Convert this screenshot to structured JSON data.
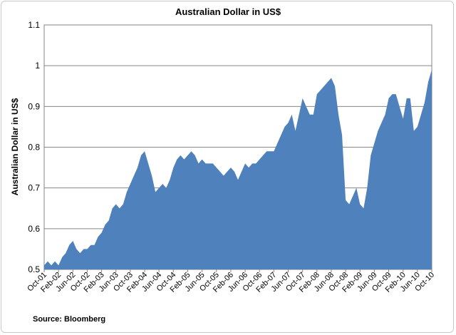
{
  "chart_data": {
    "type": "area",
    "title": "Australian Dollar in US$",
    "xlabel": "",
    "ylabel": "Australian Dollar in US$",
    "source": "Source: Bloomberg",
    "ylim": [
      0.5,
      1.1
    ],
    "y_ticks": [
      "0.5",
      "0.6",
      "0.7",
      "0.8",
      "0.9",
      "1",
      "1.1"
    ],
    "x_tick_labels": [
      "Oct-01",
      "Feb-02",
      "Jun-02",
      "Oct-02",
      "Feb-03",
      "Jun-03",
      "Oct-03",
      "Feb-04",
      "Jun-04",
      "Oct-04",
      "Feb-05",
      "Jun-05",
      "Oct-05",
      "Feb-06",
      "Jun-06",
      "Oct-06",
      "Feb-07",
      "Jun-07",
      "Oct-07",
      "Feb-08",
      "Jun-08",
      "Oct-08",
      "Feb-09",
      "Jun-09",
      "Oct-09",
      "Feb-10",
      "Jun-10",
      "Oct-10"
    ],
    "grid": true,
    "legend": "none",
    "fill_color": "#4f81bd",
    "series": [
      {
        "x": [
          "Oct-01",
          "Nov-01",
          "Dec-01",
          "Jan-02",
          "Feb-02",
          "Mar-02",
          "Apr-02",
          "May-02",
          "Jun-02",
          "Jul-02",
          "Aug-02",
          "Sep-02",
          "Oct-02",
          "Nov-02",
          "Dec-02",
          "Jan-03",
          "Feb-03",
          "Mar-03",
          "Apr-03",
          "May-03",
          "Jun-03",
          "Jul-03",
          "Aug-03",
          "Sep-03",
          "Oct-03",
          "Nov-03",
          "Dec-03",
          "Jan-04",
          "Feb-04",
          "Mar-04",
          "Apr-04",
          "May-04",
          "Jun-04",
          "Jul-04",
          "Aug-04",
          "Sep-04",
          "Oct-04",
          "Nov-04",
          "Dec-04",
          "Jan-05",
          "Feb-05",
          "Mar-05",
          "Apr-05",
          "May-05",
          "Jun-05",
          "Jul-05",
          "Aug-05",
          "Sep-05",
          "Oct-05",
          "Nov-05",
          "Dec-05",
          "Jan-06",
          "Feb-06",
          "Mar-06",
          "Apr-06",
          "May-06",
          "Jun-06",
          "Jul-06",
          "Aug-06",
          "Sep-06",
          "Oct-06",
          "Nov-06",
          "Dec-06",
          "Jan-07",
          "Feb-07",
          "Mar-07",
          "Apr-07",
          "May-07",
          "Jun-07",
          "Jul-07",
          "Aug-07",
          "Sep-07",
          "Oct-07",
          "Nov-07",
          "Dec-07",
          "Jan-08",
          "Feb-08",
          "Mar-08",
          "Apr-08",
          "May-08",
          "Jun-08",
          "Jul-08",
          "Aug-08",
          "Sep-08",
          "Oct-08",
          "Nov-08",
          "Dec-08",
          "Jan-09",
          "Feb-09",
          "Mar-09",
          "Apr-09",
          "May-09",
          "Jun-09",
          "Jul-09",
          "Aug-09",
          "Sep-09",
          "Oct-09",
          "Nov-09",
          "Dec-09",
          "Jan-10",
          "Feb-10",
          "Mar-10",
          "Apr-10",
          "May-10",
          "Jun-10",
          "Jul-10",
          "Aug-10",
          "Sep-10",
          "Oct-10"
        ],
        "values": [
          0.51,
          0.52,
          0.51,
          0.52,
          0.51,
          0.53,
          0.54,
          0.56,
          0.57,
          0.55,
          0.54,
          0.55,
          0.55,
          0.56,
          0.56,
          0.58,
          0.59,
          0.61,
          0.62,
          0.65,
          0.66,
          0.65,
          0.66,
          0.69,
          0.71,
          0.73,
          0.75,
          0.78,
          0.79,
          0.76,
          0.73,
          0.69,
          0.7,
          0.71,
          0.7,
          0.72,
          0.75,
          0.77,
          0.78,
          0.77,
          0.78,
          0.79,
          0.78,
          0.76,
          0.77,
          0.76,
          0.76,
          0.76,
          0.75,
          0.74,
          0.73,
          0.74,
          0.75,
          0.74,
          0.72,
          0.74,
          0.76,
          0.75,
          0.76,
          0.76,
          0.77,
          0.78,
          0.79,
          0.79,
          0.79,
          0.81,
          0.83,
          0.85,
          0.86,
          0.88,
          0.84,
          0.88,
          0.92,
          0.9,
          0.88,
          0.88,
          0.93,
          0.94,
          0.95,
          0.96,
          0.97,
          0.95,
          0.88,
          0.83,
          0.67,
          0.66,
          0.68,
          0.7,
          0.66,
          0.65,
          0.7,
          0.78,
          0.81,
          0.84,
          0.86,
          0.88,
          0.92,
          0.93,
          0.93,
          0.9,
          0.87,
          0.92,
          0.92,
          0.84,
          0.85,
          0.88,
          0.91,
          0.96,
          0.99
        ]
      }
    ]
  }
}
